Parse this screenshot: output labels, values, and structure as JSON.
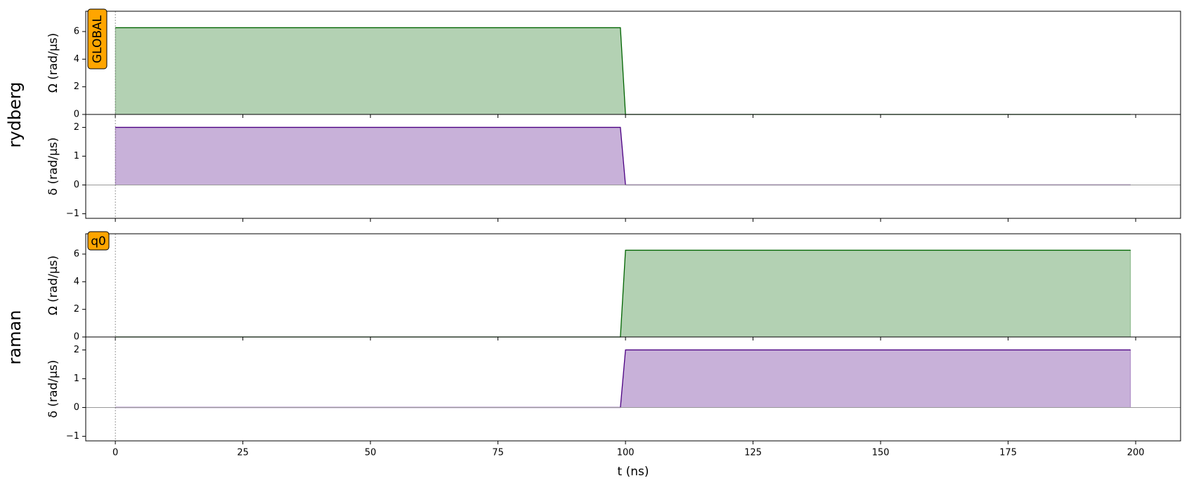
{
  "chart_data": [
    {
      "type": "area",
      "group": "rydberg",
      "channel": "GLOBAL",
      "ylabel": "Ω (rad/µs)",
      "x": [
        0,
        99,
        100,
        199
      ],
      "series": [
        {
          "color": "#006400",
          "fill": "#b3d1b3",
          "values": [
            6.28,
            6.28,
            0,
            0
          ]
        }
      ],
      "ylim": [
        0,
        7.47
      ],
      "yticks": [
        0,
        2,
        4,
        6
      ]
    },
    {
      "type": "area",
      "ylabel": "δ (rad/µs)",
      "x": [
        0,
        99,
        100,
        199
      ],
      "series": [
        {
          "color": "#4b0082",
          "fill": "#c8b1d9",
          "values": [
            2,
            2,
            0,
            0
          ]
        }
      ],
      "ylim": [
        -1.16,
        2.45
      ],
      "yticks": [
        {
          "value": -1,
          "label": "−1"
        },
        0,
        1,
        2
      ]
    },
    {
      "type": "area",
      "group": "raman",
      "channel": "q0",
      "ylabel": "Ω (rad/µs)",
      "x": [
        0,
        99,
        100,
        199
      ],
      "series": [
        {
          "color": "#006400",
          "fill": "#b3d1b3",
          "values": [
            0,
            0,
            6.28,
            6.28
          ]
        }
      ],
      "ylim": [
        0,
        7.47
      ],
      "yticks": [
        0,
        2,
        4,
        6
      ]
    },
    {
      "type": "area",
      "ylabel": "δ (rad/µs)",
      "x": [
        0,
        99,
        100,
        199
      ],
      "series": [
        {
          "color": "#4b0082",
          "fill": "#c8b1d9",
          "values": [
            0,
            0,
            2,
            2
          ]
        }
      ],
      "ylim": [
        -1.16,
        2.45
      ],
      "yticks": [
        {
          "value": -1,
          "label": "−1"
        },
        0,
        1,
        2
      ],
      "xlabel": "t (ns)",
      "xlim": [
        -5.8,
        208.8
      ],
      "xticks": [
        0,
        25,
        50,
        75,
        100,
        125,
        150,
        175,
        200
      ]
    }
  ]
}
